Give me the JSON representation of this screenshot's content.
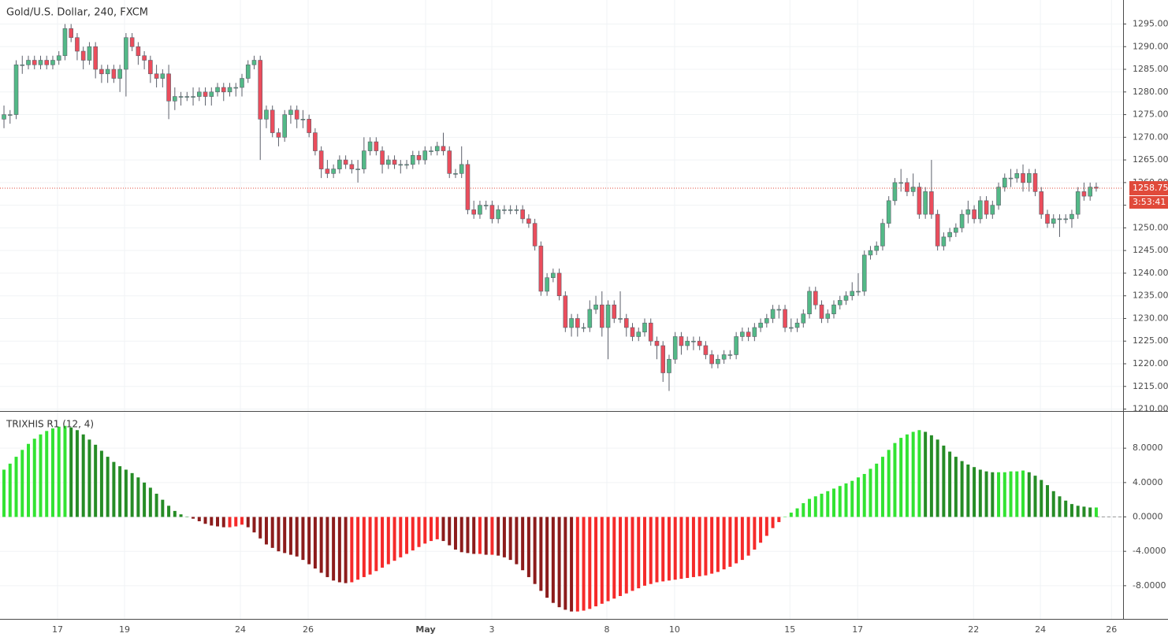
{
  "chart_data": [
    {
      "type": "candlestick",
      "title": "Gold/U.S. Dollar, 240, FXCM",
      "up_color": "#53b987",
      "down_color": "#eb4d5c",
      "xlim": [
        -0.65,
        183.4
      ],
      "xticks": [
        {
          "value": 8.78,
          "label": "17"
        },
        {
          "value": 19.76,
          "label": "19"
        },
        {
          "value": 38.75,
          "label": "24"
        },
        {
          "value": 49.85,
          "label": "26"
        },
        {
          "value": 69.1,
          "label": "May"
        },
        {
          "value": 79.95,
          "label": "3"
        },
        {
          "value": 98.8,
          "label": "8"
        },
        {
          "value": 109.9,
          "label": "10"
        },
        {
          "value": 128.8,
          "label": "15"
        },
        {
          "value": 139.9,
          "label": "17"
        },
        {
          "value": 158.9,
          "label": "22"
        },
        {
          "value": 169.85,
          "label": "24"
        },
        {
          "value": 181.5,
          "label": "26"
        }
      ],
      "ylim": [
        1209.57,
        1300.3
      ],
      "yticks": [
        {
          "value": 1210,
          "label": "1210.00"
        },
        {
          "value": 1215,
          "label": "1215.00"
        },
        {
          "value": 1220,
          "label": "1220.00"
        },
        {
          "value": 1225,
          "label": "1225.00"
        },
        {
          "value": 1230,
          "label": "1230.00"
        },
        {
          "value": 1235,
          "label": "1235.00"
        },
        {
          "value": 1240,
          "label": "1240.00"
        },
        {
          "value": 1245,
          "label": "1245.00"
        },
        {
          "value": 1250,
          "label": "1250.00"
        },
        {
          "value": 1255,
          "label": "1255.00"
        },
        {
          "value": 1260,
          "label": "1260.00"
        },
        {
          "value": 1265,
          "label": "1265.00"
        },
        {
          "value": 1270,
          "label": "1270.00"
        },
        {
          "value": 1275,
          "label": "1275.00"
        },
        {
          "value": 1280,
          "label": "1280.00"
        },
        {
          "value": 1285,
          "label": "1285.00"
        },
        {
          "value": 1290,
          "label": "1290.00"
        },
        {
          "value": 1295,
          "label": "1295.00"
        }
      ],
      "grid": true,
      "last_price": {
        "value": 1258.75,
        "label": "1258.75",
        "color": "#e04a3a"
      },
      "countdown": "3:53:41",
      "open": [
        1274,
        1275,
        1275,
        1286,
        1286,
        1287,
        1286,
        1287,
        1286,
        1287,
        1288,
        1294,
        1292,
        1289,
        1287,
        1290,
        1285,
        1284,
        1285,
        1283,
        1285,
        1292,
        1290,
        1288,
        1287,
        1284,
        1283,
        1284,
        1278,
        1279,
        1279,
        1279,
        1279,
        1280,
        1279,
        1280,
        1281,
        1280,
        1281,
        1281,
        1283,
        1286,
        1287,
        1274,
        1276,
        1271,
        1270,
        1275,
        1276,
        1274,
        1274,
        1271,
        1267,
        1263,
        1262,
        1263,
        1265,
        1264,
        1263,
        1263,
        1267,
        1269,
        1267,
        1264,
        1265,
        1264,
        1264,
        1264,
        1266,
        1265,
        1267,
        1267,
        1268,
        1267,
        1262,
        1262,
        1264,
        1254,
        1253,
        1255,
        1255,
        1252,
        1254,
        1254,
        1254,
        1254,
        1252,
        1251,
        1246,
        1236,
        1239,
        1240,
        1235,
        1228,
        1230,
        1228,
        1228,
        1232,
        1233,
        1228,
        1233,
        1230,
        1230,
        1228,
        1226,
        1227,
        1229,
        1225,
        1224,
        1218,
        1221,
        1226,
        1224,
        1225,
        1225,
        1224,
        1222,
        1220,
        1221,
        1222,
        1222,
        1226,
        1227,
        1226,
        1228,
        1229,
        1230,
        1232,
        1232,
        1228,
        1228,
        1229,
        1231,
        1236,
        1233,
        1230,
        1231,
        1233,
        1234,
        1235,
        1236,
        1236,
        1244,
        1245,
        1246,
        1251,
        1256,
        1260,
        1260,
        1258,
        1259,
        1253,
        1258,
        1253,
        1246,
        1248,
        1249,
        1250,
        1253,
        1254,
        1252,
        1256,
        1253,
        1255,
        1259,
        1261,
        1261,
        1262,
        1260,
        1262,
        1258,
        1253,
        1251,
        1252,
        1252,
        1252,
        1253,
        1258,
        1257,
        1259
      ],
      "high": [
        1277,
        1276,
        1287,
        1288,
        1288,
        1288,
        1288,
        1288,
        1288,
        1289,
        1295,
        1295,
        1293,
        1290,
        1291,
        1291,
        1286,
        1286,
        1286,
        1286,
        1293,
        1293,
        1291,
        1289,
        1288,
        1286,
        1285,
        1286,
        1281,
        1280,
        1280,
        1281,
        1281,
        1281,
        1281,
        1282,
        1282,
        1282,
        1282,
        1284,
        1287,
        1288,
        1288,
        1277,
        1277,
        1272,
        1276,
        1277,
        1277,
        1276,
        1275,
        1272,
        1268,
        1265,
        1264,
        1266,
        1266,
        1265,
        1265,
        1270,
        1270,
        1270,
        1268,
        1266,
        1266,
        1265,
        1265,
        1267,
        1267,
        1268,
        1268,
        1269,
        1271,
        1268,
        1263,
        1268,
        1265,
        1256,
        1256,
        1256,
        1256,
        1255,
        1255,
        1255,
        1255,
        1255,
        1253,
        1252,
        1247,
        1240,
        1241,
        1241,
        1236,
        1231,
        1231,
        1229,
        1234,
        1235,
        1236,
        1234,
        1234,
        1236,
        1231,
        1229,
        1228,
        1230,
        1230,
        1226,
        1225,
        1222,
        1227,
        1227,
        1226,
        1226,
        1226,
        1225,
        1223,
        1222,
        1223,
        1223,
        1227,
        1228,
        1228,
        1229,
        1230,
        1231,
        1233,
        1233,
        1233,
        1230,
        1230,
        1232,
        1237,
        1237,
        1234,
        1232,
        1234,
        1235,
        1236,
        1238,
        1240,
        1245,
        1246,
        1247,
        1252,
        1257,
        1261,
        1263,
        1261,
        1262,
        1260,
        1259,
        1265,
        1254,
        1249,
        1250,
        1251,
        1254,
        1256,
        1255,
        1257,
        1257,
        1256,
        1260,
        1262,
        1263,
        1263,
        1264,
        1263,
        1263,
        1259,
        1254,
        1253,
        1253,
        1253,
        1254,
        1259,
        1260,
        1260,
        1260
      ],
      "low": [
        1272,
        1273,
        1274,
        1284,
        1285,
        1285,
        1285,
        1285,
        1285,
        1286,
        1287,
        1291,
        1287,
        1285,
        1286,
        1283,
        1282,
        1282,
        1282,
        1280,
        1279,
        1289,
        1286,
        1285,
        1282,
        1281,
        1281,
        1274,
        1276,
        1277,
        1278,
        1277,
        1278,
        1277,
        1277,
        1279,
        1278,
        1279,
        1279,
        1279,
        1282,
        1285,
        1265,
        1272,
        1270,
        1268,
        1269,
        1273,
        1272,
        1272,
        1270,
        1266,
        1261,
        1261,
        1261,
        1262,
        1263,
        1262,
        1260,
        1262,
        1266,
        1266,
        1262,
        1263,
        1263,
        1262,
        1263,
        1263,
        1264,
        1264,
        1266,
        1266,
        1266,
        1261,
        1261,
        1261,
        1253,
        1252,
        1252,
        1254,
        1251,
        1251,
        1253,
        1253,
        1253,
        1251,
        1250,
        1245,
        1235,
        1235,
        1238,
        1234,
        1227,
        1226,
        1226,
        1227,
        1227,
        1231,
        1226,
        1221,
        1229,
        1229,
        1226,
        1225,
        1225,
        1226,
        1224,
        1221,
        1216,
        1214,
        1220,
        1222,
        1223,
        1223,
        1223,
        1221,
        1219,
        1219,
        1220,
        1221,
        1221,
        1225,
        1225,
        1225,
        1227,
        1228,
        1229,
        1230,
        1227,
        1227,
        1227,
        1228,
        1230,
        1232,
        1229,
        1229,
        1230,
        1232,
        1233,
        1234,
        1235,
        1235,
        1243,
        1244,
        1245,
        1250,
        1255,
        1258,
        1257,
        1257,
        1252,
        1252,
        1252,
        1245,
        1245,
        1247,
        1248,
        1249,
        1251,
        1251,
        1251,
        1252,
        1252,
        1254,
        1258,
        1259,
        1260,
        1258,
        1258,
        1257,
        1252,
        1250,
        1250,
        1248,
        1251,
        1250,
        1252,
        1256,
        1256,
        1258
      ],
      "close": [
        1275,
        1275,
        1286,
        1286,
        1287,
        1286,
        1287,
        1286,
        1287,
        1288,
        1294,
        1292,
        1289,
        1287,
        1290,
        1285,
        1284,
        1285,
        1283,
        1285,
        1292,
        1290,
        1288,
        1287,
        1284,
        1283,
        1284,
        1278,
        1279,
        1279,
        1279,
        1279,
        1280,
        1279,
        1280,
        1281,
        1280,
        1281,
        1281,
        1283,
        1286,
        1287,
        1274,
        1276,
        1271,
        1270,
        1275,
        1276,
        1274,
        1274,
        1271,
        1267,
        1263,
        1262,
        1263,
        1265,
        1264,
        1263,
        1263,
        1267,
        1269,
        1267,
        1264,
        1265,
        1264,
        1264,
        1264,
        1266,
        1265,
        1267,
        1267,
        1268,
        1267,
        1262,
        1262,
        1264,
        1254,
        1253,
        1255,
        1255,
        1252,
        1254,
        1254,
        1254,
        1254,
        1252,
        1251,
        1246,
        1236,
        1239,
        1240,
        1235,
        1228,
        1230,
        1228,
        1228,
        1232,
        1233,
        1228,
        1233,
        1230,
        1230,
        1228,
        1226,
        1227,
        1229,
        1225,
        1224,
        1218,
        1221,
        1226,
        1224,
        1225,
        1225,
        1224,
        1222,
        1220,
        1221,
        1222,
        1222,
        1226,
        1227,
        1226,
        1228,
        1229,
        1230,
        1232,
        1232,
        1228,
        1228,
        1229,
        1231,
        1236,
        1233,
        1230,
        1231,
        1233,
        1234,
        1235,
        1236,
        1236,
        1244,
        1245,
        1246,
        1251,
        1256,
        1260,
        1260,
        1258,
        1259,
        1253,
        1258,
        1253,
        1246,
        1248,
        1249,
        1250,
        1253,
        1254,
        1252,
        1256,
        1253,
        1255,
        1259,
        1261,
        1261,
        1262,
        1260,
        1262,
        1258,
        1253,
        1251,
        1252,
        1252,
        1252,
        1253,
        1258,
        1257,
        1259,
        1258.75
      ]
    },
    {
      "type": "histogram",
      "title": "TRIXHIS R1 (12, 4)",
      "colors": {
        "positive_rising": "#32e332",
        "positive_falling": "#268c26",
        "negative_falling": "#8c1c1c",
        "negative_rising": "#f52a2a"
      },
      "xlim": [
        -0.65,
        183.4
      ],
      "ylim": [
        -11.86,
        12.23
      ],
      "yticks": [
        {
          "value": -8,
          "label": "-8.0000"
        },
        {
          "value": -4,
          "label": "-4.0000"
        },
        {
          "value": 0,
          "label": "0.0000"
        },
        {
          "value": 4,
          "label": "4.0000"
        },
        {
          "value": 8,
          "label": "8.0000"
        }
      ],
      "values": [
        5.5,
        6.2,
        7,
        7.8,
        8.5,
        9.1,
        9.6,
        10,
        10.3,
        10.5,
        10.6,
        10.4,
        10.1,
        9.6,
        9,
        8.4,
        7.7,
        7,
        6.4,
        5.9,
        5.5,
        5.1,
        4.6,
        4,
        3.4,
        2.7,
        2,
        1.3,
        0.7,
        0.3,
        0,
        -0.2,
        -0.5,
        -0.8,
        -1,
        -1.1,
        -1.2,
        -1.2,
        -1.1,
        -0.9,
        -1.2,
        -1.8,
        -2.5,
        -3.2,
        -3.6,
        -4,
        -4.2,
        -4.4,
        -4.6,
        -5,
        -5.5,
        -6,
        -6.5,
        -7,
        -7.4,
        -7.6,
        -7.7,
        -7.6,
        -7.3,
        -7,
        -6.7,
        -6.3,
        -5.9,
        -5.5,
        -5.1,
        -4.7,
        -4.3,
        -3.9,
        -3.5,
        -3.1,
        -2.8,
        -2.6,
        -2.8,
        -3.3,
        -3.8,
        -4.1,
        -4.2,
        -4.3,
        -4.3,
        -4.4,
        -4.4,
        -4.5,
        -4.7,
        -5,
        -5.5,
        -6.2,
        -7,
        -7.8,
        -8.6,
        -9.4,
        -10,
        -10.5,
        -10.8,
        -11,
        -11,
        -10.9,
        -10.7,
        -10.4,
        -10.1,
        -9.8,
        -9.5,
        -9.2,
        -8.9,
        -8.6,
        -8.3,
        -8,
        -7.8,
        -7.6,
        -7.5,
        -7.4,
        -7.3,
        -7.2,
        -7.1,
        -7,
        -6.9,
        -6.8,
        -6.6,
        -6.4,
        -6.1,
        -5.8,
        -5.4,
        -5,
        -4.5,
        -3.8,
        -3,
        -2.2,
        -1.3,
        -0.6,
        0,
        0.5,
        1,
        1.6,
        2.1,
        2.4,
        2.7,
        3,
        3.3,
        3.6,
        3.9,
        4.2,
        4.6,
        5,
        5.6,
        6.2,
        7,
        7.8,
        8.6,
        9.2,
        9.6,
        9.9,
        10.1,
        9.9,
        9.5,
        9,
        8.3,
        7.6,
        7,
        6.5,
        6.1,
        5.8,
        5.5,
        5.3,
        5.2,
        5.2,
        5.2,
        5.3,
        5.3,
        5.4,
        5.2,
        4.8,
        4.3,
        3.7,
        3,
        2.4,
        1.9,
        1.5,
        1.3,
        1.2,
        1.1,
        1.1
      ]
    }
  ]
}
